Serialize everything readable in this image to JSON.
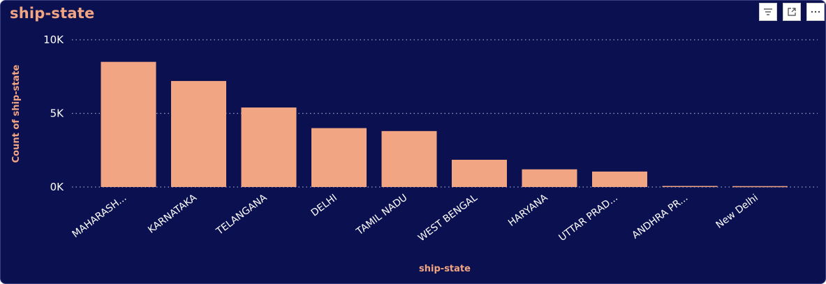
{
  "visual": {
    "title": "ship-state",
    "header_buttons": [
      {
        "icon": "filter-icon"
      },
      {
        "icon": "focus-mode-icon"
      },
      {
        "icon": "more-options-icon"
      }
    ]
  },
  "colors": {
    "background": "#0b1150",
    "bar": "#f2a582",
    "title": "#f2a582",
    "text": "#ffffff",
    "grid": "#9aa0c8"
  },
  "chart_data": {
    "type": "bar",
    "title": "ship-state",
    "xlabel": "ship-state",
    "ylabel": "Count of ship-state",
    "categories": [
      "MAHARASH...",
      "KARNATAKA",
      "TELANGANA",
      "DELHI",
      "TAMIL NADU",
      "WEST BENGAL",
      "HARYANA",
      "UTTAR PRAD...",
      "ANDHRA PR...",
      "New Delhi"
    ],
    "values": [
      8500,
      7200,
      5400,
      4000,
      3800,
      1850,
      1200,
      1050,
      70,
      60
    ],
    "yticks": [
      {
        "value": 0,
        "label": "0K"
      },
      {
        "value": 5000,
        "label": "5K"
      },
      {
        "value": 10000,
        "label": "10K"
      }
    ],
    "ylim": [
      0,
      10000
    ],
    "grid": true,
    "legend": "none"
  }
}
